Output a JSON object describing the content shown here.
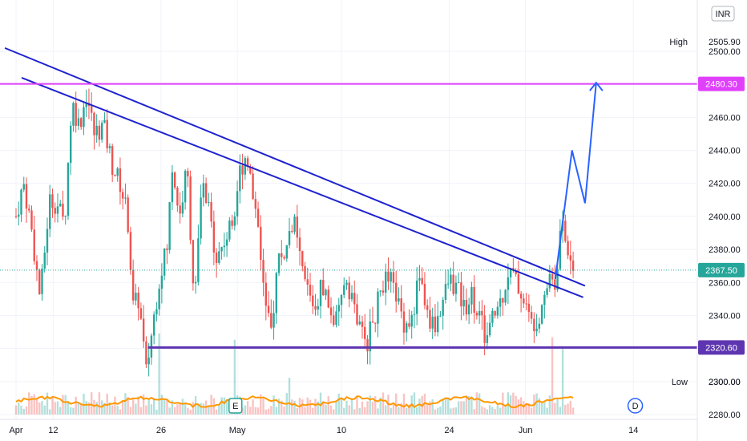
{
  "chart_data": {
    "type": "candlestick",
    "currency": "INR",
    "y_range": [
      2280,
      2555
    ],
    "y_ticks": [
      "2280.00",
      "2300.00",
      "2320.00",
      "2340.00",
      "2360.00",
      "2380.00",
      "2400.00",
      "2420.00",
      "2440.00",
      "2460.00",
      "2480.00",
      "2500.00"
    ],
    "y_tick_values": [
      2280,
      2300,
      2320,
      2340,
      2360,
      2380,
      2400,
      2420,
      2440,
      2460,
      2480,
      2500
    ],
    "x_ticks": [
      "Apr",
      "12",
      "26",
      "May",
      "10",
      "24",
      "Jun",
      "14"
    ],
    "x_tick_days": [
      0,
      20,
      78,
      119,
      175,
      233,
      274,
      332
    ],
    "high": {
      "label": "High",
      "value": "2505.90",
      "price": 2505.9
    },
    "low": {
      "label": "Low",
      "value": "2300.00",
      "price": 2300.0
    },
    "current_price": {
      "value": "2367.50",
      "price": 2367.5,
      "color": "#26a69a"
    },
    "resistance_level": {
      "value": "2480.30",
      "price": 2480.3,
      "color": "#e040fb"
    },
    "support_level": {
      "value": "2320.60",
      "price": 2320.6,
      "color": "#5e35b1"
    },
    "trendlines": [
      {
        "color": "#1e22cf",
        "points": [
          [
            -6,
            2502
          ],
          [
            306,
            2358
          ]
        ]
      },
      {
        "color": "#1e22cf",
        "points": [
          [
            3,
            2484
          ],
          [
            305,
            2351
          ]
        ]
      }
    ],
    "projection": {
      "color": "#2962ff",
      "points": [
        [
          290,
          2362
        ],
        [
          299,
          2440
        ],
        [
          306,
          2408
        ],
        [
          312,
          2481
        ]
      ]
    },
    "markers": [
      "E",
      "D"
    ],
    "up_color": "#26a69a",
    "down_color": "#ef5350",
    "ma_color": "#ff9800",
    "key_prices": [
      {
        "day": 0,
        "price": 2400
      },
      {
        "day": 4,
        "price": 2420
      },
      {
        "day": 8,
        "price": 2395
      },
      {
        "day": 13,
        "price": 2350
      },
      {
        "day": 18,
        "price": 2410
      },
      {
        "day": 22,
        "price": 2408
      },
      {
        "day": 26,
        "price": 2395
      },
      {
        "day": 30,
        "price": 2470
      },
      {
        "day": 34,
        "price": 2455
      },
      {
        "day": 38,
        "price": 2475
      },
      {
        "day": 42,
        "price": 2450
      },
      {
        "day": 47,
        "price": 2455
      },
      {
        "day": 52,
        "price": 2430
      },
      {
        "day": 56,
        "price": 2420
      },
      {
        "day": 60,
        "price": 2400
      },
      {
        "day": 63,
        "price": 2345
      },
      {
        "day": 66,
        "price": 2350
      },
      {
        "day": 70,
        "price": 2305
      },
      {
        "day": 73,
        "price": 2330
      },
      {
        "day": 78,
        "price": 2370
      },
      {
        "day": 81,
        "price": 2378
      },
      {
        "day": 84,
        "price": 2430
      },
      {
        "day": 88,
        "price": 2400
      },
      {
        "day": 92,
        "price": 2430
      },
      {
        "day": 96,
        "price": 2345
      },
      {
        "day": 100,
        "price": 2420
      },
      {
        "day": 104,
        "price": 2400
      },
      {
        "day": 108,
        "price": 2375
      },
      {
        "day": 112,
        "price": 2385
      },
      {
        "day": 116,
        "price": 2395
      },
      {
        "day": 120,
        "price": 2425
      },
      {
        "day": 124,
        "price": 2440
      },
      {
        "day": 127,
        "price": 2415
      },
      {
        "day": 130,
        "price": 2400
      },
      {
        "day": 134,
        "price": 2345
      },
      {
        "day": 137,
        "price": 2328
      },
      {
        "day": 141,
        "price": 2375
      },
      {
        "day": 145,
        "price": 2378
      },
      {
        "day": 149,
        "price": 2400
      },
      {
        "day": 153,
        "price": 2370
      },
      {
        "day": 157,
        "price": 2355
      },
      {
        "day": 161,
        "price": 2345
      },
      {
        "day": 165,
        "price": 2360
      },
      {
        "day": 169,
        "price": 2340
      },
      {
        "day": 173,
        "price": 2335
      },
      {
        "day": 177,
        "price": 2365
      },
      {
        "day": 181,
        "price": 2350
      },
      {
        "day": 185,
        "price": 2330
      },
      {
        "day": 189,
        "price": 2325
      },
      {
        "day": 193,
        "price": 2340
      },
      {
        "day": 197,
        "price": 2360
      },
      {
        "day": 201,
        "price": 2362
      },
      {
        "day": 205,
        "price": 2350
      },
      {
        "day": 209,
        "price": 2335
      },
      {
        "day": 213,
        "price": 2338
      },
      {
        "day": 217,
        "price": 2366
      },
      {
        "day": 221,
        "price": 2340
      },
      {
        "day": 225,
        "price": 2333
      },
      {
        "day": 229,
        "price": 2347
      },
      {
        "day": 233,
        "price": 2362
      },
      {
        "day": 237,
        "price": 2357
      },
      {
        "day": 241,
        "price": 2345
      },
      {
        "day": 245,
        "price": 2353
      },
      {
        "day": 249,
        "price": 2340
      },
      {
        "day": 253,
        "price": 2325
      },
      {
        "day": 257,
        "price": 2340
      },
      {
        "day": 261,
        "price": 2350
      },
      {
        "day": 265,
        "price": 2368
      },
      {
        "day": 269,
        "price": 2360
      },
      {
        "day": 273,
        "price": 2350
      },
      {
        "day": 277,
        "price": 2335
      },
      {
        "day": 281,
        "price": 2340
      },
      {
        "day": 284,
        "price": 2355
      },
      {
        "day": 287,
        "price": 2365
      },
      {
        "day": 290,
        "price": 2360
      },
      {
        "day": 293,
        "price": 2395
      },
      {
        "day": 296,
        "price": 2385
      },
      {
        "day": 300,
        "price": 2368
      }
    ]
  }
}
